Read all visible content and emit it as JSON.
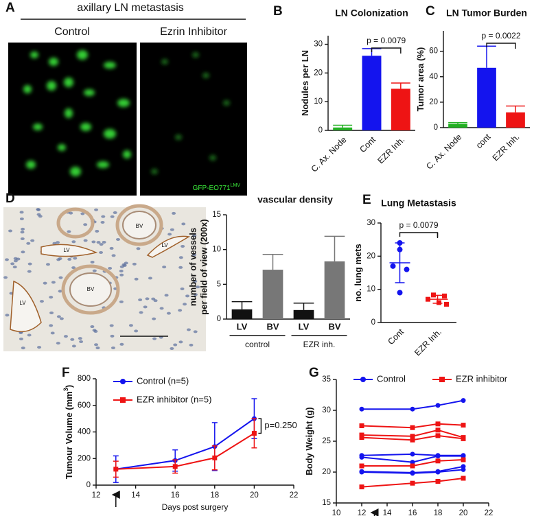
{
  "chart_data": [
    {
      "panel": "A",
      "type": "image",
      "title": "axillary LN metastasis",
      "labels": [
        "Control",
        "Ezrin Inhibitor"
      ],
      "caption": "GFP-EO771",
      "caption_sup": "LMV"
    },
    {
      "panel": "B",
      "type": "bar",
      "title": "LN Colonization",
      "ylabel": "Nodules per LN",
      "categories": [
        "C. Ax. Node",
        "Cont",
        "EZR Inh."
      ],
      "values": [
        1,
        26,
        14.5
      ],
      "errors": [
        0.8,
        2.5,
        2
      ],
      "colors": [
        "#22b022",
        "#1414ee",
        "#ee1414"
      ],
      "ylim": [
        0,
        33
      ],
      "yticks": [
        0,
        10,
        20,
        30
      ],
      "annotation": "p = 0.0079"
    },
    {
      "panel": "C",
      "type": "bar",
      "title": "LN Tumor Burden",
      "ylabel": "Tumor area (%)",
      "categories": [
        "C. Ax. Node",
        "cont",
        "EZR Inh."
      ],
      "values": [
        3,
        47,
        12
      ],
      "errors": [
        1,
        17,
        5
      ],
      "colors": [
        "#22b022",
        "#1414ee",
        "#ee1414"
      ],
      "ylim": [
        0,
        76
      ],
      "yticks": [
        0,
        20,
        40,
        60
      ],
      "annotation": "p = 0.0022"
    },
    {
      "panel": "D",
      "type": "bar",
      "image_labels": [
        "BV",
        "LV",
        "LV",
        "LV",
        "BV"
      ],
      "title": "vascular density",
      "ylabel": [
        "number of vessels",
        "per field of view (200x)"
      ],
      "categories": [
        "LV",
        "BV",
        "LV",
        "BV"
      ],
      "groups": [
        "control",
        "EZR inh."
      ],
      "values": [
        1.4,
        7.1,
        1.3,
        8.3
      ],
      "errors": [
        1.1,
        2.2,
        1.0,
        3.6
      ],
      "colors": [
        "#111111",
        "#777777",
        "#111111",
        "#777777"
      ],
      "ylim": [
        0,
        15
      ],
      "yticks": [
        0,
        5,
        10,
        15
      ]
    },
    {
      "panel": "E",
      "type": "strip",
      "title": "Lung Metastasis",
      "ylabel": "no. lung mets",
      "categories": [
        "Cont",
        "EZR Inh."
      ],
      "series": [
        {
          "color": "#1414ee",
          "values": [
            24,
            22,
            17,
            16,
            9
          ],
          "mean": 18,
          "sd": 6
        },
        {
          "color": "#ee1414",
          "values": [
            8.3,
            8,
            7,
            6,
            5.5
          ],
          "mean": 7,
          "sd": 1.2
        }
      ],
      "ylim": [
        0,
        30
      ],
      "yticks": [
        0,
        10,
        20,
        30
      ],
      "annotation": "p = 0.0079"
    },
    {
      "panel": "F",
      "type": "line",
      "ylabel": "Tumour Volume (mm",
      "ylabel_sup": "3",
      "ylabel_end": ")",
      "xlabel": "Days post surgery",
      "x": [
        13,
        16,
        18,
        20
      ],
      "series": [
        {
          "name": "Control (n=5)",
          "color": "#1414ee",
          "values": [
            120,
            185,
            290,
            500
          ],
          "errors": [
            100,
            80,
            180,
            150
          ]
        },
        {
          "name": "EZR inhibitor (n=5)",
          "color": "#ee1414",
          "values": [
            120,
            140,
            205,
            390
          ],
          "errors": [
            60,
            50,
            90,
            110
          ]
        }
      ],
      "xlim": [
        12,
        22
      ],
      "xticks": [
        12,
        14,
        16,
        18,
        20,
        22
      ],
      "ylim": [
        0,
        800
      ],
      "yticks": [
        0,
        200,
        400,
        600,
        800
      ],
      "annotation": "p=0.250"
    },
    {
      "panel": "G",
      "type": "line",
      "ylabel": "Body Weight (g)",
      "xlabel": "Days post surgery",
      "x": [
        12,
        16,
        18,
        20
      ],
      "series": [
        {
          "name": "Control",
          "color": "#1414ee",
          "lines": [
            [
              30.2,
              30.2,
              30.8,
              31.6
            ],
            [
              22.7,
              22.9,
              22.7,
              22.7
            ],
            [
              22.4,
              21.6,
              22.6,
              22.6
            ],
            [
              20.1,
              19.9,
              20.1,
              20.9
            ],
            [
              20.0,
              19.8,
              20.0,
              20.4
            ]
          ]
        },
        {
          "name": "EZR inhibitor",
          "color": "#ee1414",
          "lines": [
            [
              27.5,
              27.2,
              27.8,
              27.6
            ],
            [
              26.0,
              25.8,
              26.8,
              25.6
            ],
            [
              25.6,
              25.2,
              25.9,
              25.4
            ],
            [
              21.0,
              21.0,
              21.8,
              22.0
            ],
            [
              17.6,
              18.2,
              18.5,
              19.0
            ]
          ]
        }
      ],
      "xlim": [
        10,
        22
      ],
      "xticks": [
        10,
        12,
        14,
        16,
        18,
        20,
        22
      ],
      "ylim": [
        15,
        35
      ],
      "yticks": [
        15,
        20,
        25,
        30,
        35
      ]
    }
  ]
}
